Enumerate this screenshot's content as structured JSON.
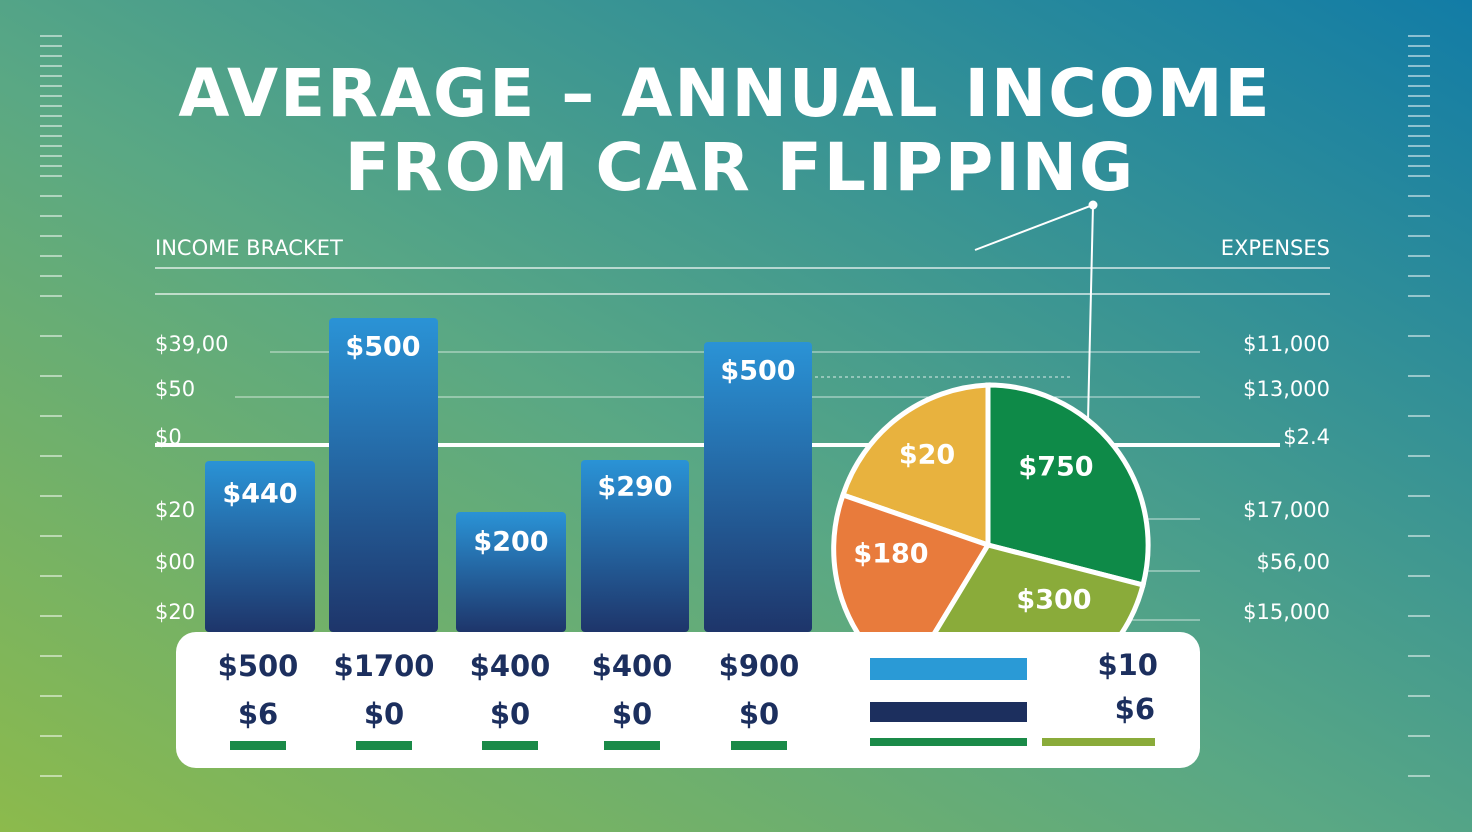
{
  "header": {
    "title_lines": [
      "AVERAGE – ANNUAL INCOME",
      "FROM CAR FLIPPING"
    ],
    "left_label": "INCOME BRACKET",
    "right_label": "EXPENSES"
  },
  "left_axis": [
    "$39,00",
    "$50",
    "$0",
    "$20",
    "$00",
    "$20"
  ],
  "right_axis": [
    "$11,000",
    "$13,000",
    "$2.4",
    "$17,000",
    "$56,00",
    "$15,000"
  ],
  "bars": [
    "$440",
    "$500",
    "$200",
    "$290",
    "$500"
  ],
  "pie": [
    "$20",
    "$750",
    "$180",
    "$300"
  ],
  "table": {
    "rows": [
      [
        "$500",
        "$1700",
        "$400",
        "$400",
        "$900"
      ],
      [
        "$6",
        "$0",
        "$0",
        "$0",
        "$0"
      ]
    ]
  },
  "legend": [
    "$10",
    "$6"
  ]
}
